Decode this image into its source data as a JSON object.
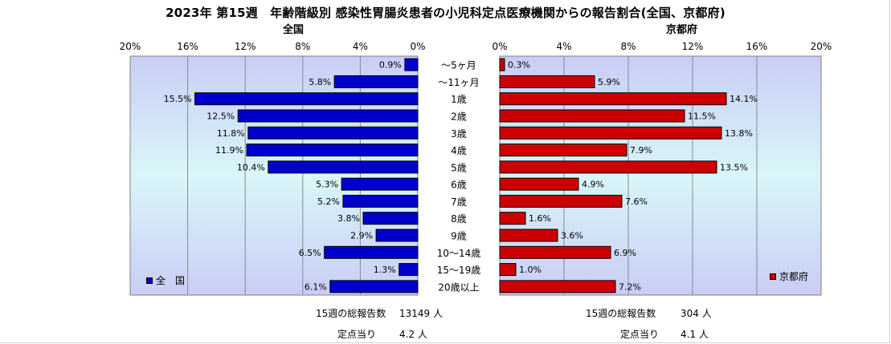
{
  "title": "2023年 第15週　年齢階級別 感染性胃腸炎患者の小児科定点医療機関からの報告割合(全国、京都府)",
  "chart_data": {
    "type": "bar",
    "orientation": "horizontal",
    "categories": [
      "～5ヶ月",
      "～11ヶ月",
      "1歳",
      "2歳",
      "3歳",
      "4歳",
      "5歳",
      "6歳",
      "7歳",
      "8歳",
      "9歳",
      "10～14歳",
      "15～19歳",
      "20歳以上"
    ],
    "xlim": [
      0,
      20
    ],
    "x_ticks": [
      "0%",
      "4%",
      "8%",
      "12%",
      "16%",
      "20%"
    ],
    "grid": true,
    "series": [
      {
        "name": "全　国",
        "panel_title": "全国",
        "values": [
          0.9,
          5.8,
          15.5,
          12.5,
          11.8,
          11.9,
          10.4,
          5.3,
          5.2,
          3.8,
          2.9,
          6.5,
          1.3,
          6.1
        ],
        "labels": [
          "0.9%",
          "5.8%",
          "15.5%",
          "12.5%",
          "11.8%",
          "11.9%",
          "10.4%",
          "5.3%",
          "5.2%",
          "3.8%",
          "2.9%",
          "6.5%",
          "1.3%",
          "6.1%"
        ],
        "color": "#0000cc",
        "legend_position": "bottom-left"
      },
      {
        "name": "京都府",
        "panel_title": "京都府",
        "values": [
          0.3,
          5.9,
          14.1,
          11.5,
          13.8,
          7.9,
          13.5,
          4.9,
          7.6,
          1.6,
          3.6,
          6.9,
          1.0,
          7.2
        ],
        "labels": [
          "0.3%",
          "5.9%",
          "14.1%",
          "11.5%",
          "13.8%",
          "7.9%",
          "13.5%",
          "4.9%",
          "7.6%",
          "1.6%",
          "3.6%",
          "6.9%",
          "1.0%",
          "7.2%"
        ],
        "color": "#cc0000",
        "legend_position": "bottom-right"
      }
    ]
  },
  "footer": {
    "left": {
      "total_label": "15週の総報告数",
      "total_value": "13149 人",
      "per_label": "定点当り",
      "per_value": "4.2 人"
    },
    "right": {
      "total_label": "15週の総報告数",
      "total_value": "304 人",
      "per_label": "定点当り",
      "per_value": "4.1 人"
    }
  }
}
